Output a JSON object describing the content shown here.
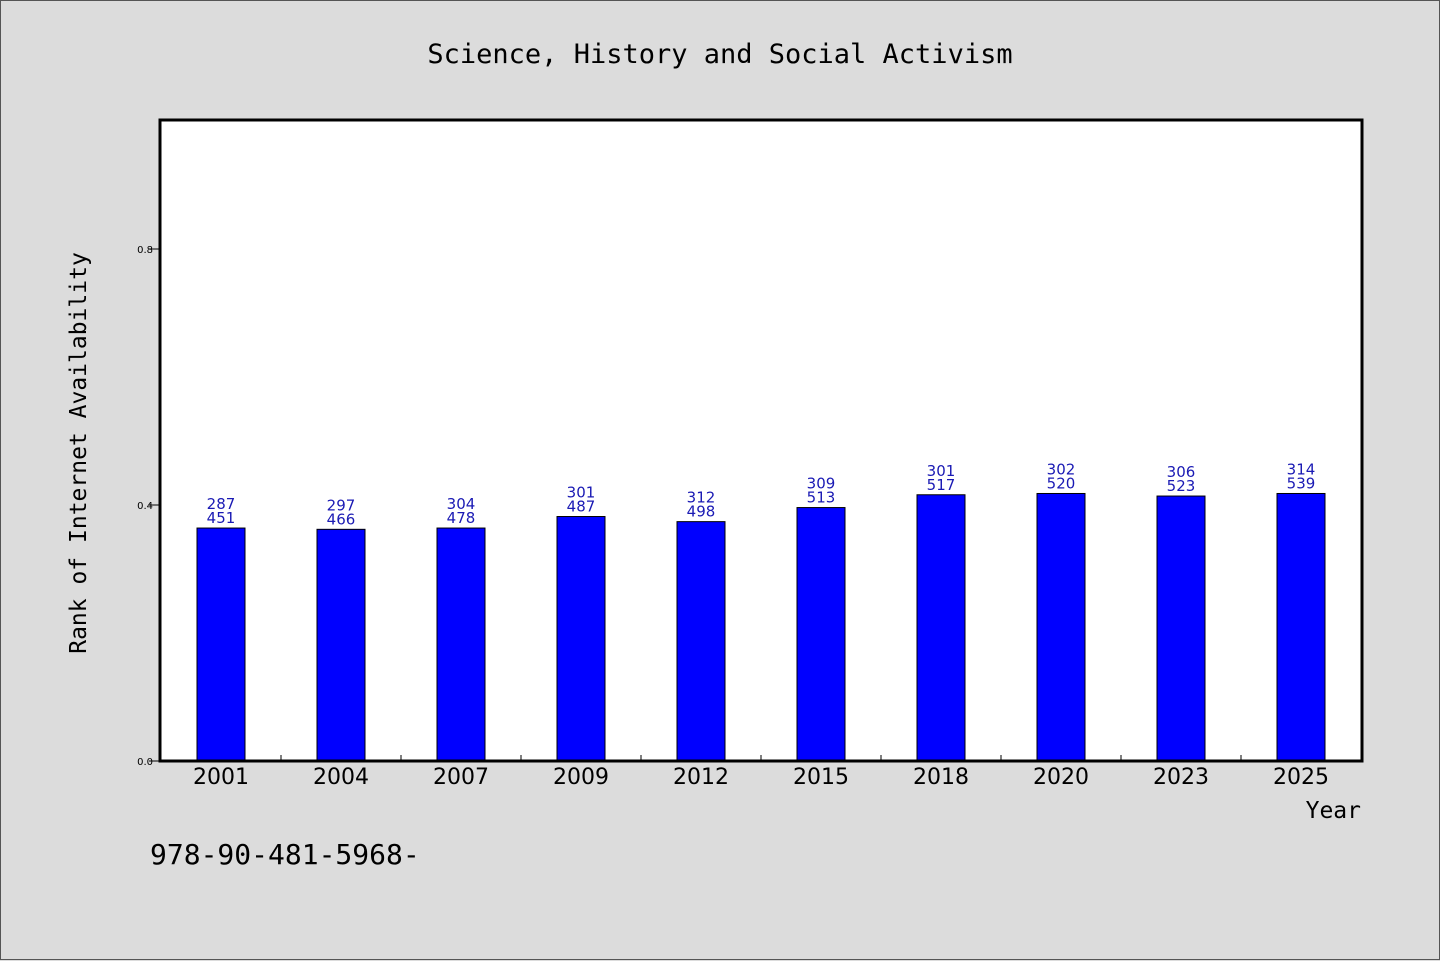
{
  "chart_data": {
    "type": "bar",
    "title": "Science, History and Social Activism",
    "xlabel": "Year",
    "ylabel": "Rank of Internet Availability",
    "categories": [
      "2001",
      "2004",
      "2007",
      "2009",
      "2012",
      "2015",
      "2018",
      "2020",
      "2023",
      "2025"
    ],
    "values": [
      0.364,
      0.362,
      0.364,
      0.382,
      0.374,
      0.396,
      0.416,
      0.418,
      0.414,
      0.418
    ],
    "label_top": [
      "287",
      "297",
      "304",
      "301",
      "312",
      "309",
      "301",
      "302",
      "306",
      "314"
    ],
    "label_bottom": [
      "451",
      "466",
      "478",
      "487",
      "498",
      "513",
      "517",
      "520",
      "523",
      "539"
    ],
    "yticks": [
      "0.0",
      "0.4",
      "0.8"
    ],
    "ylim": [
      0,
      1.0
    ],
    "grid": false,
    "bar_color": "#0000ff",
    "label_color": "#1a1ab4"
  },
  "footer_text": "978-90-481-5968-"
}
